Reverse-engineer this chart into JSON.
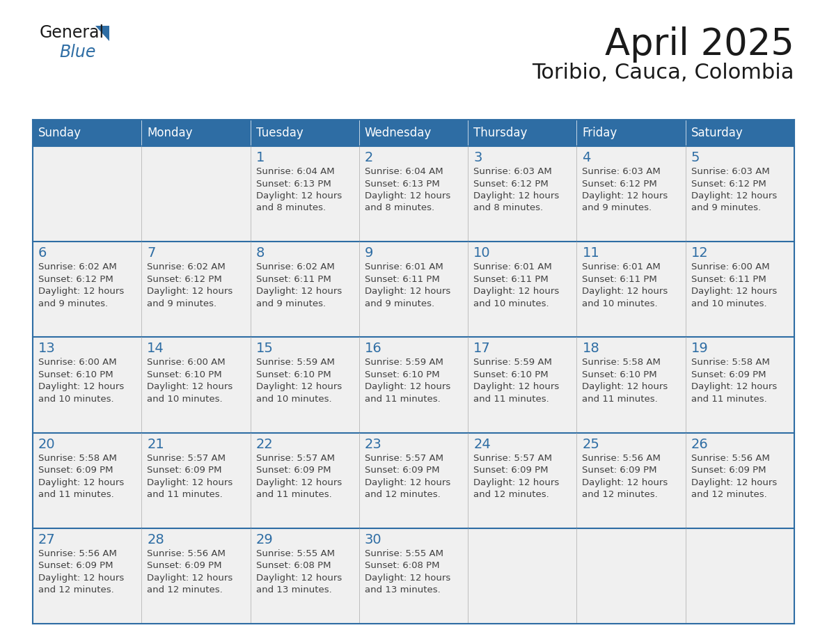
{
  "title": "April 2025",
  "subtitle": "Toribio, Cauca, Colombia",
  "header_bg": "#2E6DA4",
  "header_text_color": "#FFFFFF",
  "cell_bg": "#F0F0F0",
  "day_num_color": "#2E6DA4",
  "body_text_color": "#404040",
  "border_color": "#2E6DA4",
  "days_of_week": [
    "Sunday",
    "Monday",
    "Tuesday",
    "Wednesday",
    "Thursday",
    "Friday",
    "Saturday"
  ],
  "weeks": [
    [
      {
        "day": "",
        "info": ""
      },
      {
        "day": "",
        "info": ""
      },
      {
        "day": "1",
        "info": "Sunrise: 6:04 AM\nSunset: 6:13 PM\nDaylight: 12 hours\nand 8 minutes."
      },
      {
        "day": "2",
        "info": "Sunrise: 6:04 AM\nSunset: 6:13 PM\nDaylight: 12 hours\nand 8 minutes."
      },
      {
        "day": "3",
        "info": "Sunrise: 6:03 AM\nSunset: 6:12 PM\nDaylight: 12 hours\nand 8 minutes."
      },
      {
        "day": "4",
        "info": "Sunrise: 6:03 AM\nSunset: 6:12 PM\nDaylight: 12 hours\nand 9 minutes."
      },
      {
        "day": "5",
        "info": "Sunrise: 6:03 AM\nSunset: 6:12 PM\nDaylight: 12 hours\nand 9 minutes."
      }
    ],
    [
      {
        "day": "6",
        "info": "Sunrise: 6:02 AM\nSunset: 6:12 PM\nDaylight: 12 hours\nand 9 minutes."
      },
      {
        "day": "7",
        "info": "Sunrise: 6:02 AM\nSunset: 6:12 PM\nDaylight: 12 hours\nand 9 minutes."
      },
      {
        "day": "8",
        "info": "Sunrise: 6:02 AM\nSunset: 6:11 PM\nDaylight: 12 hours\nand 9 minutes."
      },
      {
        "day": "9",
        "info": "Sunrise: 6:01 AM\nSunset: 6:11 PM\nDaylight: 12 hours\nand 9 minutes."
      },
      {
        "day": "10",
        "info": "Sunrise: 6:01 AM\nSunset: 6:11 PM\nDaylight: 12 hours\nand 10 minutes."
      },
      {
        "day": "11",
        "info": "Sunrise: 6:01 AM\nSunset: 6:11 PM\nDaylight: 12 hours\nand 10 minutes."
      },
      {
        "day": "12",
        "info": "Sunrise: 6:00 AM\nSunset: 6:11 PM\nDaylight: 12 hours\nand 10 minutes."
      }
    ],
    [
      {
        "day": "13",
        "info": "Sunrise: 6:00 AM\nSunset: 6:10 PM\nDaylight: 12 hours\nand 10 minutes."
      },
      {
        "day": "14",
        "info": "Sunrise: 6:00 AM\nSunset: 6:10 PM\nDaylight: 12 hours\nand 10 minutes."
      },
      {
        "day": "15",
        "info": "Sunrise: 5:59 AM\nSunset: 6:10 PM\nDaylight: 12 hours\nand 10 minutes."
      },
      {
        "day": "16",
        "info": "Sunrise: 5:59 AM\nSunset: 6:10 PM\nDaylight: 12 hours\nand 11 minutes."
      },
      {
        "day": "17",
        "info": "Sunrise: 5:59 AM\nSunset: 6:10 PM\nDaylight: 12 hours\nand 11 minutes."
      },
      {
        "day": "18",
        "info": "Sunrise: 5:58 AM\nSunset: 6:10 PM\nDaylight: 12 hours\nand 11 minutes."
      },
      {
        "day": "19",
        "info": "Sunrise: 5:58 AM\nSunset: 6:09 PM\nDaylight: 12 hours\nand 11 minutes."
      }
    ],
    [
      {
        "day": "20",
        "info": "Sunrise: 5:58 AM\nSunset: 6:09 PM\nDaylight: 12 hours\nand 11 minutes."
      },
      {
        "day": "21",
        "info": "Sunrise: 5:57 AM\nSunset: 6:09 PM\nDaylight: 12 hours\nand 11 minutes."
      },
      {
        "day": "22",
        "info": "Sunrise: 5:57 AM\nSunset: 6:09 PM\nDaylight: 12 hours\nand 11 minutes."
      },
      {
        "day": "23",
        "info": "Sunrise: 5:57 AM\nSunset: 6:09 PM\nDaylight: 12 hours\nand 12 minutes."
      },
      {
        "day": "24",
        "info": "Sunrise: 5:57 AM\nSunset: 6:09 PM\nDaylight: 12 hours\nand 12 minutes."
      },
      {
        "day": "25",
        "info": "Sunrise: 5:56 AM\nSunset: 6:09 PM\nDaylight: 12 hours\nand 12 minutes."
      },
      {
        "day": "26",
        "info": "Sunrise: 5:56 AM\nSunset: 6:09 PM\nDaylight: 12 hours\nand 12 minutes."
      }
    ],
    [
      {
        "day": "27",
        "info": "Sunrise: 5:56 AM\nSunset: 6:09 PM\nDaylight: 12 hours\nand 12 minutes."
      },
      {
        "day": "28",
        "info": "Sunrise: 5:56 AM\nSunset: 6:09 PM\nDaylight: 12 hours\nand 12 minutes."
      },
      {
        "day": "29",
        "info": "Sunrise: 5:55 AM\nSunset: 6:08 PM\nDaylight: 12 hours\nand 13 minutes."
      },
      {
        "day": "30",
        "info": "Sunrise: 5:55 AM\nSunset: 6:08 PM\nDaylight: 12 hours\nand 13 minutes."
      },
      {
        "day": "",
        "info": ""
      },
      {
        "day": "",
        "info": ""
      },
      {
        "day": "",
        "info": ""
      }
    ]
  ],
  "logo_color_general": "#1a1a1a",
  "logo_color_blue": "#2E6DA4",
  "logo_triangle_color": "#2E6DA4",
  "title_fontsize": 38,
  "subtitle_fontsize": 22,
  "dow_fontsize": 12,
  "day_num_fontsize": 14,
  "info_fontsize": 9.5
}
